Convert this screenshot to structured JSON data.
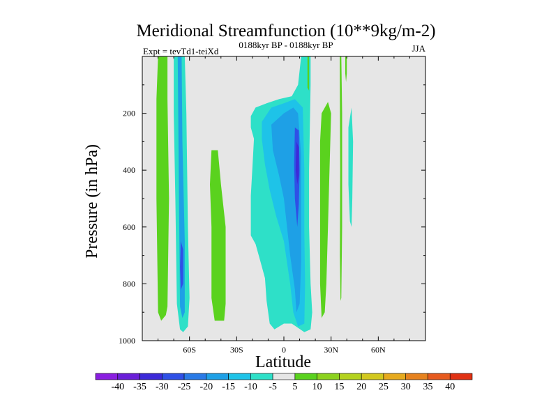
{
  "chart_data": {
    "type": "contour",
    "title": "Meridional Streamfunction (10**9kg/m-2)",
    "left_label": "Expt = tevTd1-teiXd",
    "center_label": "0188kyr BP - 0188kyr BP",
    "right_label": "JJA",
    "xlabel": "Latitude",
    "ylabel": "Pressure (in hPa)",
    "xlim": [
      -90,
      90
    ],
    "ylim": [
      1000,
      0
    ],
    "x_ticks": [
      -60,
      -30,
      0,
      30,
      60
    ],
    "x_tick_labels": [
      "60S",
      "30S",
      "0",
      "30N",
      "60N"
    ],
    "y_ticks": [
      200,
      400,
      600,
      800,
      1000
    ],
    "y_tick_labels": [
      "200",
      "400",
      "600",
      "800",
      "1000"
    ],
    "background_color": "#e6e6e6",
    "colorbar": {
      "labels": [
        "-40",
        "-35",
        "-30",
        "-25",
        "-20",
        "-15",
        "-10",
        "-5",
        "5",
        "10",
        "15",
        "20",
        "25",
        "30",
        "35",
        "40"
      ],
      "colors": [
        "#8a1ee0",
        "#6a1fd8",
        "#3c2ad8",
        "#2f50e6",
        "#2a7ae6",
        "#1ea0e6",
        "#1ec3e8",
        "#2ee0c8",
        "#e6e6e6",
        "#5ad21e",
        "#8cd21e",
        "#b4d21e",
        "#d2c81e",
        "#e6aa1e",
        "#e6821e",
        "#e65a1e",
        "#e03214"
      ]
    },
    "regions": [
      {
        "name": "green-lobe-80s",
        "level": 5,
        "color": "#5ad21e",
        "points": [
          [
            -80,
            0
          ],
          [
            -74,
            0
          ],
          [
            -74,
            150
          ],
          [
            -73,
            500
          ],
          [
            -74,
            880
          ],
          [
            -75,
            910
          ],
          [
            -78,
            930
          ],
          [
            -80,
            900
          ],
          [
            -81,
            500
          ],
          [
            -81,
            150
          ]
        ]
      },
      {
        "name": "cyan-cell-65s",
        "level": -5,
        "color": "#2ee0c8",
        "points": [
          [
            -70,
            0
          ],
          [
            -63,
            0
          ],
          [
            -62,
            200
          ],
          [
            -61,
            600
          ],
          [
            -60,
            850
          ],
          [
            -61,
            950
          ],
          [
            -64,
            970
          ],
          [
            -66,
            960
          ],
          [
            -68,
            870
          ],
          [
            -69,
            500
          ],
          [
            -70,
            200
          ]
        ]
      },
      {
        "name": "cyan-cell-65s-core",
        "level": -15,
        "color": "#1ea0e6",
        "points": [
          [
            -67.5,
            0
          ],
          [
            -65,
            0
          ],
          [
            -64.5,
            300
          ],
          [
            -63,
            650
          ],
          [
            -63,
            900
          ],
          [
            -64.5,
            920
          ],
          [
            -66,
            880
          ],
          [
            -66.5,
            600
          ],
          [
            -67,
            300
          ]
        ]
      },
      {
        "name": "cyan-cell-65s-inner",
        "level": -25,
        "color": "#2f50e6",
        "points": [
          [
            -65.5,
            650
          ],
          [
            -64,
            680
          ],
          [
            -64,
            800
          ],
          [
            -65.5,
            820
          ],
          [
            -66,
            740
          ]
        ]
      },
      {
        "name": "green-lobe-40s",
        "level": 5,
        "color": "#5ad21e",
        "points": [
          [
            -46,
            330
          ],
          [
            -42,
            330
          ],
          [
            -40,
            450
          ],
          [
            -37,
            600
          ],
          [
            -37,
            870
          ],
          [
            -38,
            930
          ],
          [
            -44,
            930
          ],
          [
            -46,
            850
          ],
          [
            -46,
            600
          ],
          [
            -47,
            450
          ]
        ]
      },
      {
        "name": "cyan-cell-eq",
        "level": -5,
        "color": "#2ee0c8",
        "points": [
          [
            -21,
            210
          ],
          [
            -18,
            180
          ],
          [
            -11,
            165
          ],
          [
            -3,
            150
          ],
          [
            5,
            140
          ],
          [
            9,
            100
          ],
          [
            11,
            0
          ],
          [
            17,
            0
          ],
          [
            17,
            100
          ],
          [
            16,
            400
          ],
          [
            16,
            600
          ],
          [
            17,
            800
          ],
          [
            18,
            900
          ],
          [
            17,
            960
          ],
          [
            13,
            970
          ],
          [
            5,
            940
          ],
          [
            0,
            940
          ],
          [
            -6,
            960
          ],
          [
            -9,
            940
          ],
          [
            -11,
            860
          ],
          [
            -12,
            780
          ],
          [
            -15,
            720
          ],
          [
            -18,
            660
          ],
          [
            -21,
            630
          ],
          [
            -21,
            490
          ],
          [
            -20,
            390
          ],
          [
            -19,
            290
          ],
          [
            -21,
            250
          ]
        ]
      },
      {
        "name": "cyan-cell-eq-mid",
        "level": -10,
        "color": "#1ec3e8",
        "points": [
          [
            -14,
            230
          ],
          [
            -8,
            180
          ],
          [
            0,
            165
          ],
          [
            7,
            150
          ],
          [
            12,
            180
          ],
          [
            13,
            400
          ],
          [
            13,
            620
          ],
          [
            13.5,
            800
          ],
          [
            13,
            940
          ],
          [
            9,
            950
          ],
          [
            6,
            900
          ],
          [
            4,
            800
          ],
          [
            0,
            650
          ],
          [
            -5,
            560
          ],
          [
            -9,
            470
          ],
          [
            -12,
            380
          ],
          [
            -14,
            290
          ]
        ]
      },
      {
        "name": "cyan-cell-eq-core",
        "level": -15,
        "color": "#1ea0e6",
        "points": [
          [
            -8,
            240
          ],
          [
            0,
            200
          ],
          [
            6,
            180
          ],
          [
            9,
            200
          ],
          [
            11,
            350
          ],
          [
            11,
            560
          ],
          [
            11,
            720
          ],
          [
            10,
            870
          ],
          [
            8,
            900
          ],
          [
            7,
            820
          ],
          [
            4,
            700
          ],
          [
            2,
            600
          ],
          [
            0,
            500
          ],
          [
            -3,
            420
          ],
          [
            -7,
            330
          ]
        ]
      },
      {
        "name": "cyan-cell-eq-inner",
        "level": -25,
        "color": "#2f50e6",
        "points": [
          [
            7,
            250
          ],
          [
            9.5,
            260
          ],
          [
            10,
            400
          ],
          [
            9.5,
            520
          ],
          [
            8.5,
            600
          ],
          [
            7,
            500
          ],
          [
            6.5,
            380
          ]
        ]
      },
      {
        "name": "cyan-cell-eq-max",
        "level": -30,
        "color": "#3c2ad8",
        "points": [
          [
            8,
            300
          ],
          [
            9.5,
            320
          ],
          [
            9.5,
            420
          ],
          [
            8.5,
            450
          ],
          [
            7.5,
            400
          ]
        ]
      },
      {
        "name": "green-lobe-20n",
        "level": 5,
        "color": "#5ad21e",
        "points": [
          [
            24,
            200
          ],
          [
            28,
            160
          ],
          [
            30,
            200
          ],
          [
            29,
            400
          ],
          [
            28,
            600
          ],
          [
            27,
            800
          ],
          [
            26,
            900
          ],
          [
            24,
            920
          ],
          [
            23,
            800
          ],
          [
            23,
            500
          ],
          [
            23,
            300
          ]
        ]
      },
      {
        "name": "green-sliver-35n",
        "level": 5,
        "color": "#5ad21e",
        "points": [
          [
            35.5,
            0
          ],
          [
            36.5,
            0
          ],
          [
            37,
            200
          ],
          [
            37,
            600
          ],
          [
            36.5,
            850
          ],
          [
            36,
            860
          ],
          [
            35.6,
            700
          ],
          [
            35.8,
            400
          ]
        ]
      },
      {
        "name": "green-sliver-40n",
        "level": 5,
        "color": "#5ad21e",
        "points": [
          [
            39,
            0
          ],
          [
            40,
            0
          ],
          [
            40,
            60
          ],
          [
            39.5,
            90
          ],
          [
            39,
            60
          ]
        ]
      },
      {
        "name": "green-sliver-10n",
        "level": 5,
        "color": "#5ad21e",
        "points": [
          [
            15,
            0
          ],
          [
            16,
            0
          ],
          [
            16,
            120
          ],
          [
            15,
            110
          ]
        ]
      },
      {
        "name": "cyan-cell-43n",
        "level": -5,
        "color": "#2ee0c8",
        "points": [
          [
            41,
            250
          ],
          [
            43,
            180
          ],
          [
            44,
            300
          ],
          [
            43.5,
            500
          ],
          [
            43,
            600
          ],
          [
            42,
            580
          ],
          [
            41,
            450
          ]
        ]
      }
    ]
  }
}
